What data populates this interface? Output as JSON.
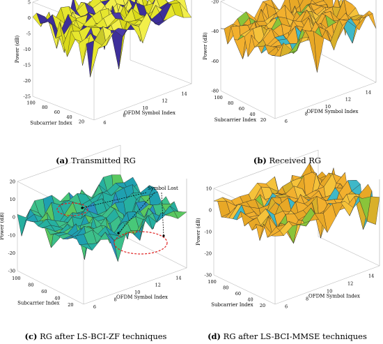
{
  "chart_data": [
    {
      "type": "surface3d",
      "letter": "(a)",
      "caption": "Transmitted RG",
      "xlabel": "OFDM Symbol Index",
      "ylabel": "Subcarrier Index",
      "zlabel": "Power (dB)",
      "x_ticks": [
        "6",
        "8",
        "10",
        "12",
        "14"
      ],
      "y_ticks": [
        "20",
        "40",
        "60",
        "80",
        "100"
      ],
      "z_ticks": [
        "5",
        "0",
        "-5",
        "-10",
        "-15",
        "-20",
        "-25"
      ],
      "zlim": [
        -25,
        5
      ],
      "surface_colors": [
        "#e6e62e",
        "#f2ef4a",
        "#d9d91a",
        "#3d2f9a",
        "#4a3aa8",
        "#c9c928"
      ],
      "surface_level": [
        -4,
        2
      ]
    },
    {
      "type": "surface3d",
      "letter": "(b)",
      "caption": "Received RG",
      "xlabel": "OFDM Symbol Index",
      "ylabel": "Subcarrier Index",
      "zlabel": "Power (dB)",
      "x_ticks": [
        "6",
        "8",
        "10",
        "12",
        "14"
      ],
      "y_ticks": [
        "20",
        "40",
        "60",
        "80",
        "100"
      ],
      "z_ticks": [
        "-20",
        "-40",
        "-60",
        "-80"
      ],
      "zlim": [
        -80,
        -20
      ],
      "surface_colors": [
        "#f2b02e",
        "#e8a826",
        "#f5c23a",
        "#d9b02a",
        "#3fb8c8",
        "#8ac43a"
      ],
      "surface_level": [
        -42,
        -30
      ]
    },
    {
      "type": "surface3d",
      "letter": "(c)",
      "caption": "RG after LS-BCI-ZF techniques",
      "xlabel": "OFDM Symbol Index",
      "ylabel": "Subcarrier Index",
      "zlabel": "Power (dB)",
      "x_ticks": [
        "6",
        "8",
        "10",
        "12",
        "14"
      ],
      "y_ticks": [
        "20",
        "40",
        "60",
        "80",
        "100"
      ],
      "z_ticks": [
        "20",
        "10",
        "0",
        "-10",
        "-20",
        "-30"
      ],
      "zlim": [
        -30,
        20
      ],
      "surface_colors": [
        "#26b0a0",
        "#3cc08a",
        "#1fa0b0",
        "#5ac860",
        "#2a90c0",
        "#48c878"
      ],
      "surface_level": [
        -2,
        6
      ],
      "annotation": "Symbol Lost"
    },
    {
      "type": "surface3d",
      "letter": "(d)",
      "caption": "RG after LS-BCI-MMSE techniques",
      "xlabel": "OFDM Symbol Index",
      "ylabel": "Subcarrier Index",
      "zlabel": "Power (dB)",
      "x_ticks": [
        "6",
        "8",
        "10",
        "12",
        "14"
      ],
      "y_ticks": [
        "20",
        "40",
        "60",
        "80",
        "100"
      ],
      "z_ticks": [
        "10",
        "0",
        "-10",
        "-20",
        "-30"
      ],
      "zlim": [
        -30,
        10
      ],
      "surface_colors": [
        "#f2b02e",
        "#e8a826",
        "#f5c23a",
        "#d9b02a",
        "#3fb8c8",
        "#8ac43a"
      ],
      "surface_level": [
        -2,
        6
      ]
    }
  ]
}
